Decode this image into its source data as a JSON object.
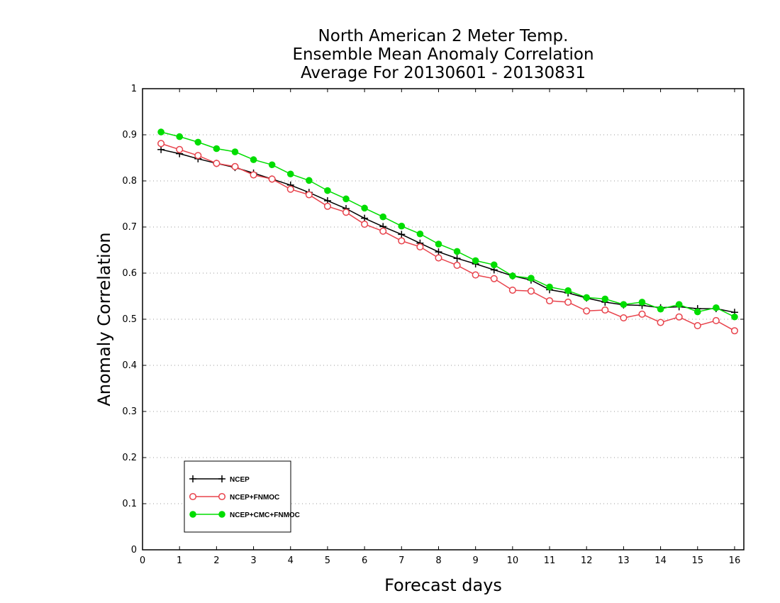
{
  "chart_data": {
    "type": "line",
    "title": [
      "North American 2 Meter Temp.",
      "Ensemble Mean Anomaly Correlation",
      "Average For 20130601 - 20130831"
    ],
    "xlabel": "Forecast days",
    "ylabel": "Anomaly Correlation",
    "xlim": [
      0,
      16.25
    ],
    "ylim": [
      0,
      1
    ],
    "xticks": [
      "0",
      "1",
      "2",
      "3",
      "4",
      "5",
      "6",
      "7",
      "8",
      "9",
      "10",
      "11",
      "12",
      "13",
      "14",
      "15",
      "16"
    ],
    "yticks": [
      "0",
      "0.1",
      "0.2",
      "0.3",
      "0.4",
      "0.5",
      "0.6",
      "0.7",
      "0.8",
      "0.9",
      "1"
    ],
    "grid": "horizontal dotted",
    "legend_position": "bottom-left",
    "x": [
      0.5,
      1,
      1.5,
      2,
      2.5,
      3,
      3.5,
      4,
      4.5,
      5,
      5.5,
      6,
      6.5,
      7,
      7.5,
      8,
      8.5,
      9,
      9.5,
      10,
      10.5,
      11,
      11.5,
      12,
      12.5,
      13,
      13.5,
      14,
      14.5,
      15,
      15.5,
      16
    ],
    "series": [
      {
        "name": "NCEP",
        "color": "#000000",
        "marker": "plus",
        "values": [
          0.868,
          0.859,
          0.848,
          0.838,
          0.829,
          0.817,
          0.804,
          0.791,
          0.775,
          0.757,
          0.74,
          0.719,
          0.701,
          0.684,
          0.665,
          0.646,
          0.632,
          0.62,
          0.607,
          0.594,
          0.585,
          0.564,
          0.557,
          0.546,
          0.537,
          0.531,
          0.53,
          0.525,
          0.527,
          0.523,
          0.523,
          0.515
        ]
      },
      {
        "name": "NCEP+FNMOC",
        "color": "#e8434c",
        "marker": "open-circle",
        "values": [
          0.881,
          0.868,
          0.855,
          0.838,
          0.831,
          0.813,
          0.804,
          0.782,
          0.77,
          0.745,
          0.732,
          0.706,
          0.691,
          0.67,
          0.657,
          0.633,
          0.617,
          0.596,
          0.588,
          0.563,
          0.561,
          0.54,
          0.537,
          0.518,
          0.52,
          0.503,
          0.511,
          0.493,
          0.505,
          0.486,
          0.497,
          0.475
        ]
      },
      {
        "name": "NCEP+CMC+FNMOC",
        "color": "#00dd00",
        "marker": "filled-circle",
        "values": [
          0.906,
          0.896,
          0.884,
          0.87,
          0.863,
          0.846,
          0.835,
          0.815,
          0.801,
          0.779,
          0.761,
          0.741,
          0.722,
          0.702,
          0.685,
          0.663,
          0.647,
          0.627,
          0.618,
          0.594,
          0.589,
          0.57,
          0.562,
          0.547,
          0.544,
          0.532,
          0.537,
          0.522,
          0.532,
          0.516,
          0.525,
          0.505
        ]
      }
    ]
  }
}
